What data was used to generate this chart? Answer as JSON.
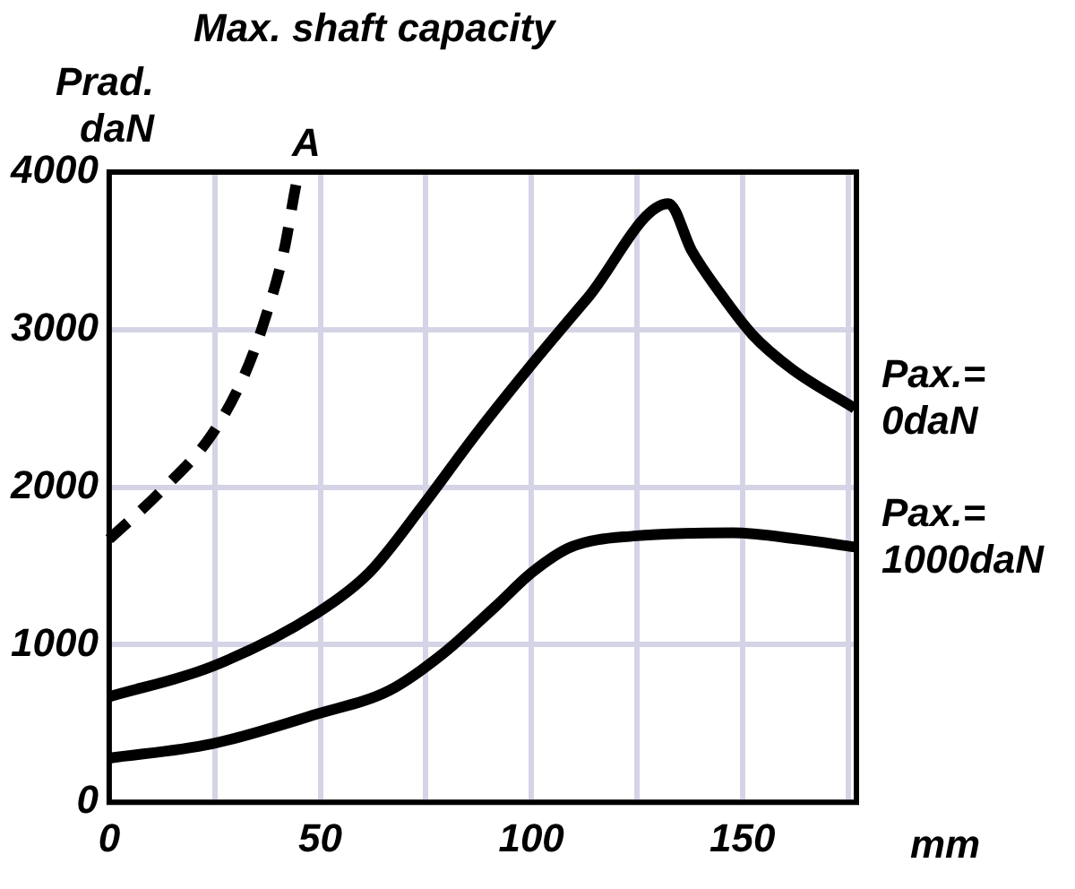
{
  "chart_data": {
    "type": "line",
    "title": "Max. shaft capacity",
    "ylabel": "Prad.\ndaN",
    "xlabel": "mm",
    "xlim": [
      0,
      177
    ],
    "ylim": [
      0,
      4000
    ],
    "xticks": [
      0,
      {
        "value": 25,
        "label": null
      },
      50,
      {
        "value": 75,
        "label": null
      },
      100,
      {
        "value": 125,
        "label": null
      },
      150,
      {
        "value": 175,
        "label": null
      }
    ],
    "yticks": [
      0,
      1000,
      2000,
      3000,
      4000
    ],
    "grid": true,
    "legend": false,
    "marker": "none",
    "annotations": [
      {
        "text": "A",
        "x": 45,
        "y": 4000
      }
    ],
    "series": [
      {
        "name": "Pax.=\n0daN",
        "color": "#000000",
        "line_style": "solid",
        "x": [
          0,
          24.2,
          49.2,
          61.7,
          74.2,
          86.7,
          99.2,
          113.3,
          132.5,
          138,
          144.5,
          152.3,
          161.7,
          176.6
        ],
        "values": [
          670,
          860,
          1200,
          1460,
          1880,
          2330,
          2750,
          3200,
          3800,
          3500,
          3240,
          2970,
          2750,
          2500
        ]
      },
      {
        "name": "Pax.=\n1000daN",
        "color": "#000000",
        "line_style": "solid",
        "x": [
          0,
          24.2,
          49.2,
          66.4,
          78.9,
          91.4,
          100.2,
          109.4,
          124.2,
          147.7,
          163.3,
          176.6
        ],
        "values": [
          280,
          370,
          560,
          710,
          940,
          1240,
          1460,
          1620,
          1690,
          1710,
          1670,
          1620
        ]
      },
      {
        "color": "#000000",
        "line_style": "dashed",
        "x": [
          0,
          11.7,
          24.2,
          32,
          36.7,
          41.4,
          44.5,
          45
        ],
        "values": [
          1670,
          1960,
          2330,
          2710,
          3050,
          3500,
          3950,
          4000
        ]
      }
    ]
  }
}
